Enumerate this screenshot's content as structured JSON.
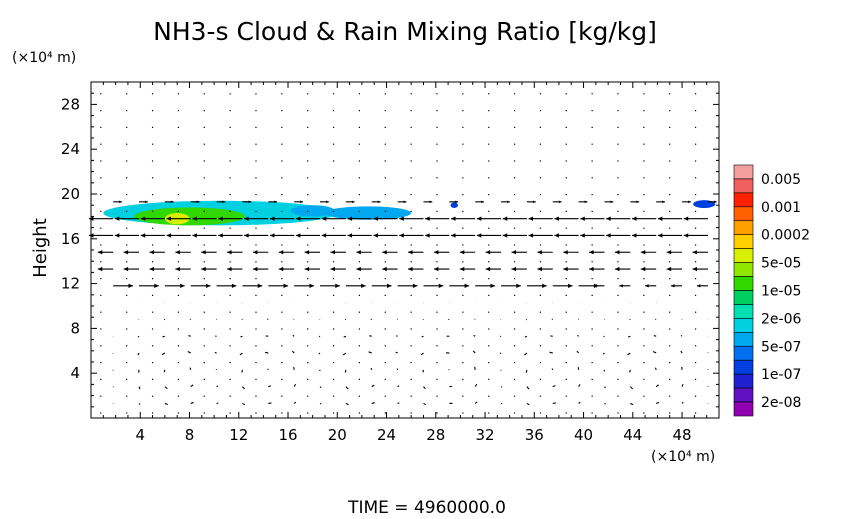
{
  "chart_data": {
    "type": "heatmap",
    "title": "NH3-s Cloud & Rain Mixing Ratio [kg/kg]",
    "ylabel": "Height",
    "y_unit": "(×10⁴ m)",
    "x_unit": "(×10⁴ m)",
    "footer": "TIME  =  4960000.0",
    "xlim": [
      0,
      51
    ],
    "ylim": [
      0,
      30
    ],
    "xticks": [
      4,
      8,
      12,
      16,
      20,
      24,
      28,
      32,
      36,
      40,
      44,
      48
    ],
    "yticks": [
      4,
      8,
      12,
      16,
      20,
      24,
      28
    ],
    "xtick_labels": [
      "4",
      "8",
      "12",
      "16",
      "20",
      "24",
      "28",
      "32",
      "36",
      "40",
      "44",
      "48"
    ],
    "ytick_labels": [
      "4",
      "8",
      "12",
      "16",
      "20",
      "24",
      "28"
    ],
    "colorbar": {
      "labels": [
        "0.005",
        "0.001",
        "0.0002",
        "5e-05",
        "1e-05",
        "2e-06",
        "5e-07",
        "1e-07",
        "2e-08"
      ],
      "colors": [
        "#f4a0a0",
        "#f06060",
        "#ff2000",
        "#ff6000",
        "#ffa000",
        "#ffd000",
        "#d8f000",
        "#90e800",
        "#30d800",
        "#00d060",
        "#00e0b0",
        "#00d0e0",
        "#00a8f0",
        "#0070f0",
        "#0040e0",
        "#2020d0",
        "#6010c0",
        "#9000b0"
      ]
    },
    "cloud_regions": [
      {
        "cx": 10.5,
        "cy": 18.3,
        "rx": 9.5,
        "ry": 1.1,
        "level": "2e-06",
        "color": "#00d0e0"
      },
      {
        "cx": 8.0,
        "cy": 18.0,
        "rx": 4.5,
        "ry": 0.8,
        "level": "1e-05",
        "color": "#30d800"
      },
      {
        "cx": 7.0,
        "cy": 17.8,
        "rx": 1.0,
        "ry": 0.5,
        "level": "5e-05",
        "color": "#d8f000"
      },
      {
        "cx": 22.5,
        "cy": 18.3,
        "rx": 3.5,
        "ry": 0.6,
        "level": "5e-07",
        "color": "#00a8f0"
      },
      {
        "cx": 18.0,
        "cy": 18.5,
        "rx": 1.8,
        "ry": 0.5,
        "level": "5e-07",
        "color": "#00a8f0"
      },
      {
        "cx": 49.8,
        "cy": 19.1,
        "rx": 0.9,
        "ry": 0.35,
        "level": "1e-07",
        "color": "#0040e0"
      },
      {
        "cx": 29.5,
        "cy": 19.0,
        "rx": 0.3,
        "ry": 0.25,
        "level": "1e-07",
        "color": "#0040e0"
      }
    ]
  }
}
